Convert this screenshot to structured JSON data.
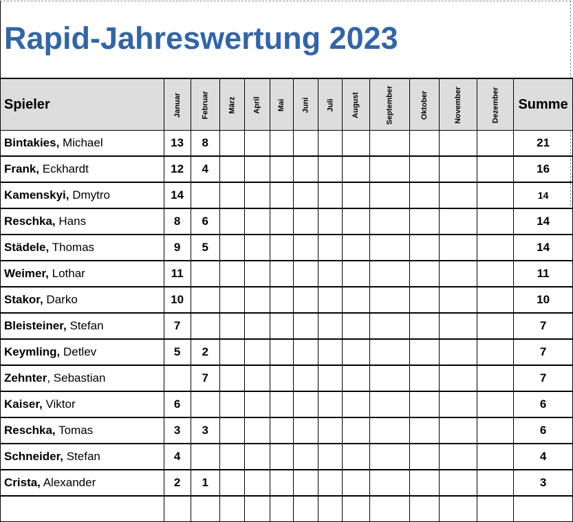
{
  "title": "Rapid-Jahreswertung 2023",
  "header": {
    "player": "Spieler",
    "months": [
      "Januar",
      "Februar",
      "März",
      "April",
      "Mai",
      "Juni",
      "Juli",
      "August",
      "September",
      "Oktober",
      "November",
      "Dezember"
    ],
    "sum": "Summe"
  },
  "rows": [
    {
      "last": "Bintakies,",
      "first": " Michael",
      "scores": [
        "13",
        "8",
        "",
        "",
        "",
        "",
        "",
        "",
        "",
        "",
        "",
        ""
      ],
      "sum": "21"
    },
    {
      "last": "Frank,",
      "first": " Eckhardt",
      "scores": [
        "12",
        "4",
        "",
        "",
        "",
        "",
        "",
        "",
        "",
        "",
        "",
        ""
      ],
      "sum": "16"
    },
    {
      "last": "Kamenskyi,",
      "first": " Dmytro",
      "scores": [
        "14",
        "",
        "",
        "",
        "",
        "",
        "",
        "",
        "",
        "",
        "",
        ""
      ],
      "sum": "14"
    },
    {
      "last": "Reschka,",
      "first": " Hans",
      "scores": [
        "8",
        "6",
        "",
        "",
        "",
        "",
        "",
        "",
        "",
        "",
        "",
        ""
      ],
      "sum": "14"
    },
    {
      "last": "Städele,",
      "first": " Thomas",
      "scores": [
        "9",
        "5",
        "",
        "",
        "",
        "",
        "",
        "",
        "",
        "",
        "",
        ""
      ],
      "sum": "14"
    },
    {
      "last": "Weimer,",
      "first": " Lothar",
      "scores": [
        "11",
        "",
        "",
        "",
        "",
        "",
        "",
        "",
        "",
        "",
        "",
        ""
      ],
      "sum": "11"
    },
    {
      "last": "Stakor,",
      "first": " Darko",
      "scores": [
        "10",
        "",
        "",
        "",
        "",
        "",
        "",
        "",
        "",
        "",
        "",
        ""
      ],
      "sum": "10"
    },
    {
      "last": "Bleisteiner,",
      "first": " Stefan",
      "scores": [
        "7",
        "",
        "",
        "",
        "",
        "",
        "",
        "",
        "",
        "",
        "",
        ""
      ],
      "sum": "7"
    },
    {
      "last": "Keymling,",
      "first": " Detlev",
      "scores": [
        "5",
        "2",
        "",
        "",
        "",
        "",
        "",
        "",
        "",
        "",
        "",
        ""
      ],
      "sum": "7"
    },
    {
      "last": "Zehnter",
      "first": ", Sebastian",
      "scores": [
        "",
        "7",
        "",
        "",
        "",
        "",
        "",
        "",
        "",
        "",
        "",
        ""
      ],
      "sum": "7"
    },
    {
      "last": "Kaiser,",
      "first": " Viktor",
      "scores": [
        "6",
        "",
        "",
        "",
        "",
        "",
        "",
        "",
        "",
        "",
        "",
        ""
      ],
      "sum": "6"
    },
    {
      "last": "Reschka,",
      "first": " Tomas",
      "scores": [
        "3",
        "3",
        "",
        "",
        "",
        "",
        "",
        "",
        "",
        "",
        "",
        ""
      ],
      "sum": "6"
    },
    {
      "last": "Schneider,",
      "first": " Stefan",
      "scores": [
        "4",
        "",
        "",
        "",
        "",
        "",
        "",
        "",
        "",
        "",
        "",
        ""
      ],
      "sum": "4"
    },
    {
      "last": "Crista,",
      "first": " Alexander",
      "scores": [
        "2",
        "1",
        "",
        "",
        "",
        "",
        "",
        "",
        "",
        "",
        "",
        ""
      ],
      "sum": "3"
    },
    {
      "last": "",
      "first": "",
      "scores": [
        "",
        "",
        "",
        "",
        "",
        "",
        "",
        "",
        "",
        "",
        "",
        ""
      ],
      "sum": ""
    }
  ]
}
